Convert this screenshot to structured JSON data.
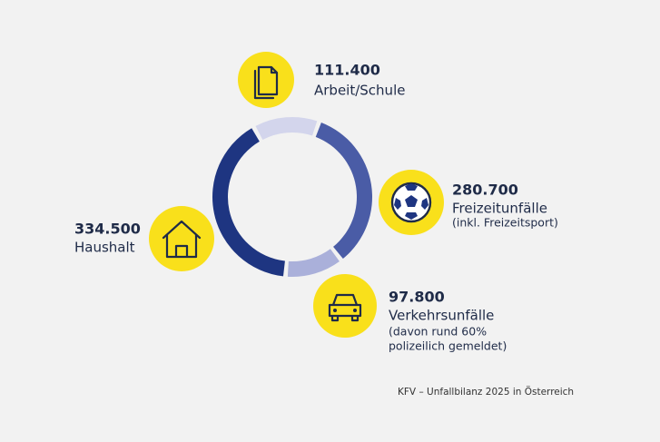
{
  "chart_data": {
    "type": "pie",
    "categories": [
      "Arbeit/Schule",
      "Freizeitunfälle",
      "Verkehrsunfälle",
      "Haushalt"
    ],
    "values": [
      111400,
      280700,
      97800,
      334500
    ],
    "value_labels": [
      "111.400",
      "280.700",
      "97.800",
      "334.500"
    ],
    "colors": [
      "#d3d5ec",
      "#4a5ca6",
      "#aab0da",
      "#1e3581"
    ],
    "annotations": [
      "(inkl. Freizeitsport)",
      "(davon rund 60%",
      "polizeilich gemeldet)"
    ],
    "source": "KFV – Unfallbilanz 2025 in Österreich"
  }
}
